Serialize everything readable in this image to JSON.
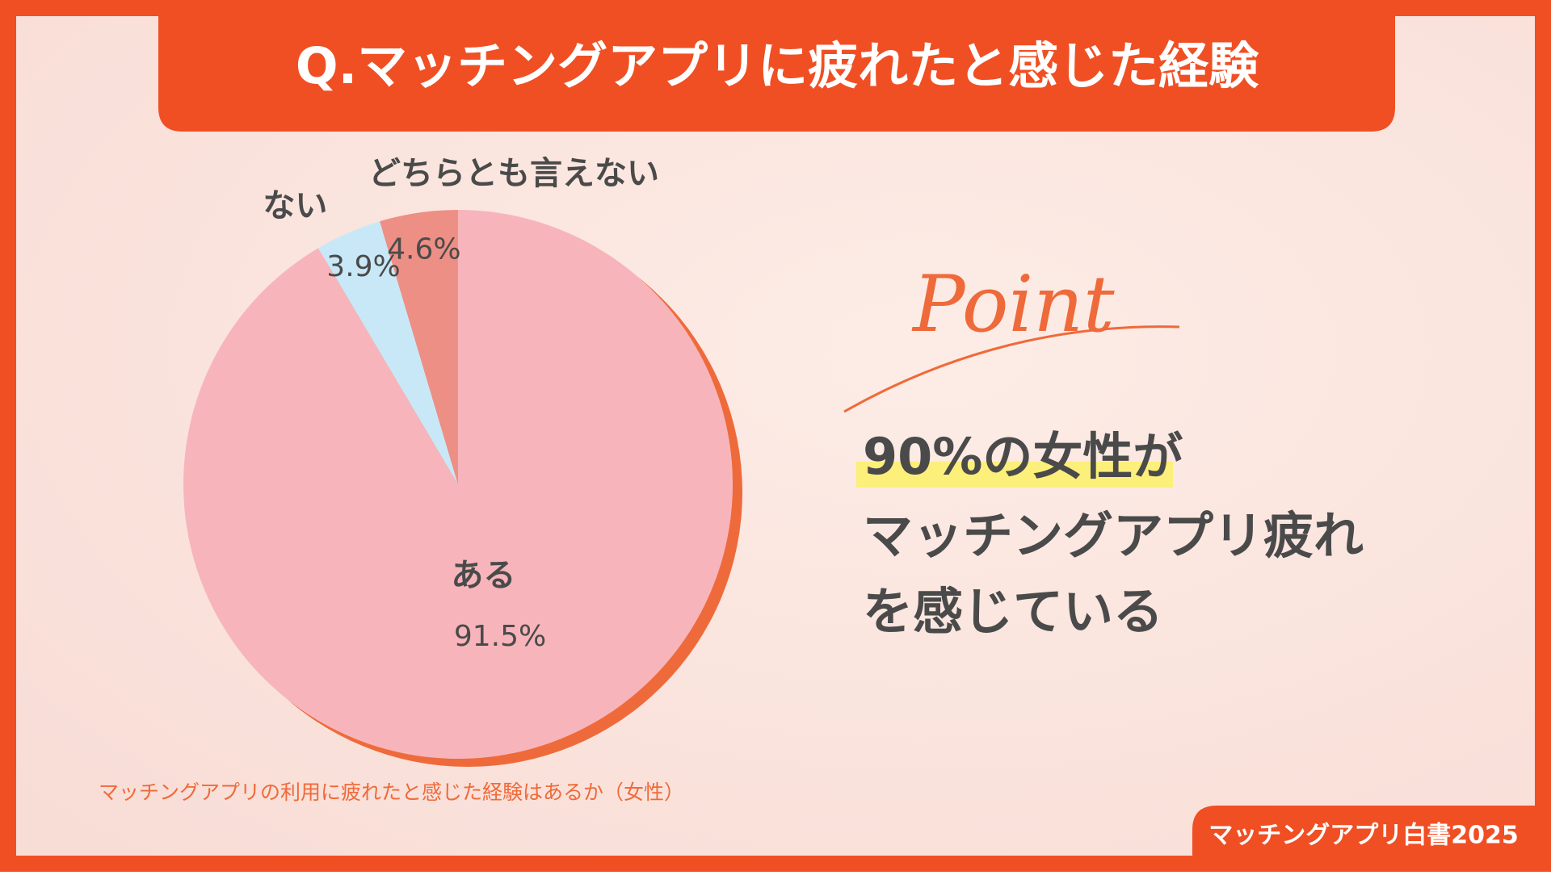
{
  "chart_data": {
    "type": "pie",
    "title": "Q.マッチングアプリに疲れたと感じた経験",
    "categories": [
      "ある",
      "ない",
      "どちらとも言えない"
    ],
    "values": [
      91.5,
      3.9,
      4.6
    ],
    "value_labels": [
      "91.5%",
      "3.9%",
      "4.6%"
    ],
    "colors": [
      "#f7b5bb",
      "#c9e8f7",
      "#ee8f86"
    ],
    "caption": "マッチングアプリの利用に疲れたと感じた経験はあるか（女性）"
  },
  "point": {
    "label": "Point",
    "highlight": "90%の女性",
    "line1_rest": "が",
    "lines": [
      "マッチングアプリ疲れ",
      "を感じている"
    ]
  },
  "brand": "マッチングアプリ白書2025"
}
